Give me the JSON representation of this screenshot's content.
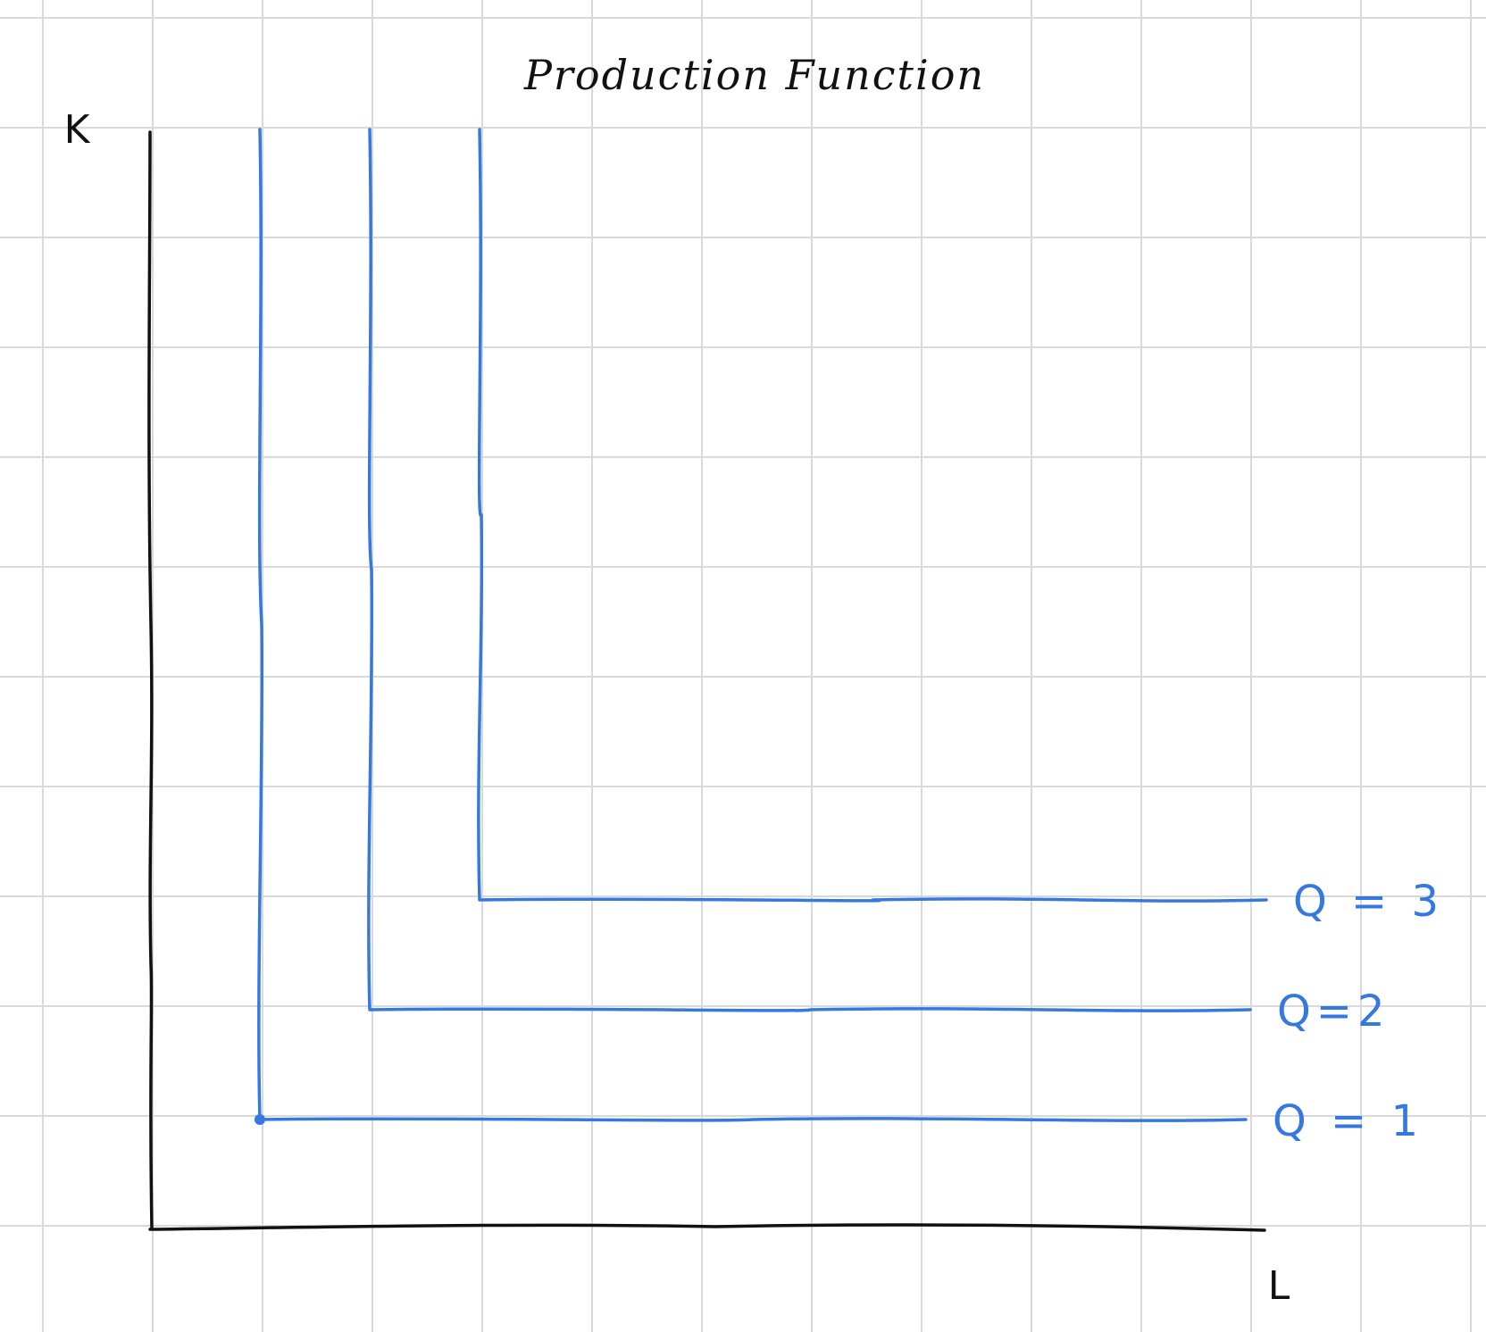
{
  "title": "Production Function",
  "axes": {
    "y_label": "K",
    "x_label": "L"
  },
  "isoquants": [
    {
      "label": "Q = 1",
      "corner": [
        1,
        1
      ]
    },
    {
      "label": "Q=2",
      "corner": [
        2,
        2
      ]
    },
    {
      "label": "Q = 3",
      "corner": [
        3,
        3
      ]
    }
  ],
  "colors": {
    "axis": "#111111",
    "isoquant": "#3478e0",
    "grid": "#d9d9d9",
    "background": "#ffffff"
  }
}
